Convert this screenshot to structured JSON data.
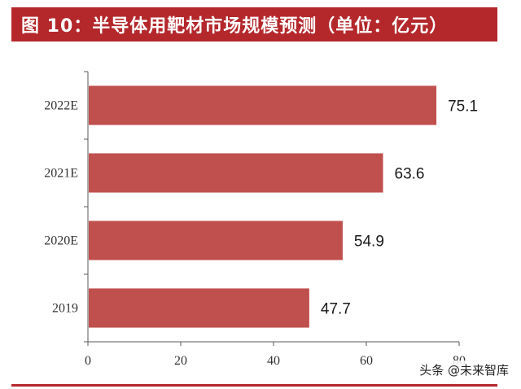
{
  "header": {
    "title": "图 10：半导体用靶材市场规模预测（单位：亿元）"
  },
  "watermark": "头条 @未来智库",
  "colors": {
    "title_bg": "#b4282c",
    "bar": "#c0504d",
    "axis": "#595959"
  },
  "chart_data": {
    "type": "bar",
    "orientation": "horizontal",
    "title": "图 10：半导体用靶材市场规模预测（单位：亿元）",
    "categories": [
      "2022E",
      "2021E",
      "2020E",
      "2019"
    ],
    "values": [
      75.1,
      63.6,
      54.9,
      47.7
    ],
    "value_labels": [
      "75.1",
      "63.6",
      "54.9",
      "47.7"
    ],
    "xlim": [
      0,
      80
    ],
    "x_ticks": [
      "0",
      "20",
      "40",
      "60",
      "80"
    ],
    "xlabel": "",
    "ylabel": "",
    "grid": false,
    "legend": "none"
  }
}
